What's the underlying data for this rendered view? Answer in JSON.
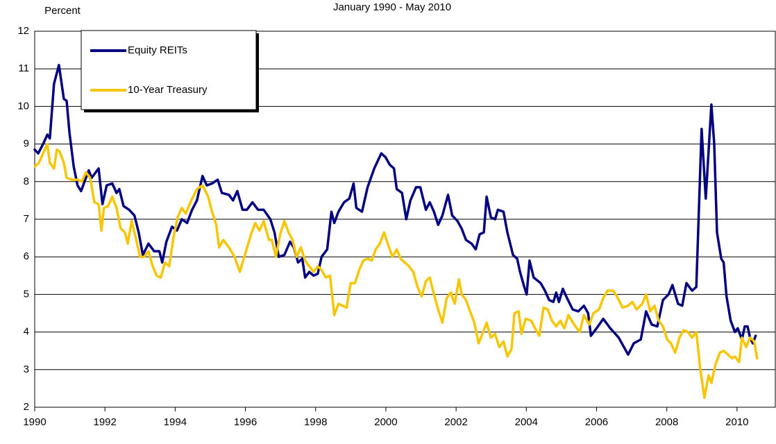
{
  "chart_data": {
    "type": "line",
    "title": "January 1990 - May 2010",
    "y_label": "Percent",
    "xlim": [
      1990,
      2011.09
    ],
    "xticks": [
      1990,
      1992,
      1994,
      1996,
      1998,
      2000,
      2002,
      2004,
      2006,
      2008,
      2010
    ],
    "ylim": [
      2,
      12
    ],
    "yticks": [
      2,
      3,
      4,
      5,
      6,
      7,
      8,
      9,
      10,
      11,
      12
    ],
    "grid": true,
    "legend": "upper left",
    "series": [
      {
        "name": "Equity REITs",
        "color": "#000080",
        "x": [
          1990.0,
          1990.1,
          1990.24,
          1990.36,
          1990.43,
          1990.55,
          1990.69,
          1990.83,
          1990.91,
          1990.99,
          1991.11,
          1991.22,
          1991.32,
          1991.42,
          1991.54,
          1991.62,
          1991.7,
          1991.82,
          1991.93,
          1992.05,
          1992.21,
          1992.33,
          1992.41,
          1992.53,
          1992.69,
          1992.84,
          1992.96,
          1993.08,
          1993.24,
          1993.4,
          1993.55,
          1993.63,
          1993.75,
          1993.91,
          1994.05,
          1994.19,
          1994.34,
          1994.48,
          1994.62,
          1994.78,
          1994.9,
          1995.05,
          1995.21,
          1995.33,
          1995.53,
          1995.65,
          1995.77,
          1995.92,
          1996.04,
          1996.2,
          1996.36,
          1996.52,
          1996.71,
          1996.83,
          1996.95,
          1997.11,
          1997.27,
          1997.38,
          1997.5,
          1997.62,
          1997.7,
          1997.82,
          1997.94,
          1998.06,
          1998.17,
          1998.33,
          1998.45,
          1998.53,
          1998.65,
          1998.81,
          1998.96,
          1999.08,
          1999.16,
          1999.32,
          1999.48,
          1999.67,
          1999.87,
          1999.99,
          2000.11,
          2000.23,
          2000.31,
          2000.46,
          2000.58,
          2000.7,
          2000.86,
          2000.98,
          2001.14,
          2001.25,
          2001.37,
          2001.49,
          2001.61,
          2001.77,
          2001.89,
          2002.04,
          2002.16,
          2002.28,
          2002.44,
          2002.56,
          2002.67,
          2002.79,
          2002.87,
          2002.99,
          2003.11,
          2003.19,
          2003.35,
          2003.46,
          2003.62,
          2003.74,
          2003.82,
          2003.94,
          2004.01,
          2004.09,
          2004.21,
          2004.41,
          2004.53,
          2004.65,
          2004.77,
          2004.85,
          2004.93,
          2005.04,
          2005.16,
          2005.32,
          2005.48,
          2005.64,
          2005.76,
          2005.84,
          2006.0,
          2006.19,
          2006.39,
          2006.63,
          2006.78,
          2006.9,
          2007.06,
          2007.26,
          2007.41,
          2007.57,
          2007.73,
          2007.89,
          2008.05,
          2008.16,
          2008.32,
          2008.44,
          2008.56,
          2008.72,
          2008.84,
          2008.99,
          2009.11,
          2009.27,
          2009.35,
          2009.43,
          2009.55,
          2009.62,
          2009.7,
          2009.82,
          2009.94,
          2010.02,
          2010.14,
          2010.22,
          2010.3,
          2010.37,
          2010.45,
          2010.53
        ],
        "values": [
          8.85,
          8.75,
          9.0,
          9.25,
          9.15,
          10.6,
          11.1,
          10.2,
          10.15,
          9.3,
          8.4,
          7.9,
          7.75,
          8.0,
          8.3,
          8.1,
          8.2,
          8.35,
          7.4,
          7.9,
          7.95,
          7.7,
          7.8,
          7.35,
          7.25,
          7.1,
          6.65,
          6.05,
          6.35,
          6.15,
          6.15,
          5.85,
          6.4,
          6.8,
          6.7,
          7.0,
          6.9,
          7.25,
          7.5,
          8.15,
          7.9,
          7.95,
          8.05,
          7.7,
          7.65,
          7.5,
          7.75,
          7.25,
          7.25,
          7.45,
          7.25,
          7.25,
          7.0,
          6.65,
          6.0,
          6.05,
          6.4,
          6.25,
          5.85,
          5.95,
          5.45,
          5.6,
          5.5,
          5.55,
          6.0,
          6.2,
          7.2,
          6.9,
          7.2,
          7.45,
          7.55,
          7.95,
          7.3,
          7.2,
          7.85,
          8.35,
          8.75,
          8.65,
          8.45,
          8.35,
          7.8,
          7.7,
          7.0,
          7.5,
          7.85,
          7.85,
          7.25,
          7.45,
          7.2,
          6.85,
          7.1,
          7.65,
          7.1,
          6.95,
          6.75,
          6.45,
          6.35,
          6.2,
          6.6,
          6.65,
          7.6,
          7.05,
          7.0,
          7.25,
          7.2,
          6.65,
          6.05,
          5.95,
          5.6,
          5.2,
          5.0,
          5.9,
          5.45,
          5.3,
          5.1,
          4.85,
          4.8,
          5.05,
          4.8,
          5.15,
          4.9,
          4.6,
          4.55,
          4.7,
          4.5,
          3.9,
          4.1,
          4.35,
          4.1,
          3.85,
          3.6,
          3.4,
          3.7,
          3.8,
          4.55,
          4.2,
          4.15,
          4.85,
          5.0,
          5.25,
          4.75,
          4.7,
          5.3,
          5.1,
          5.2,
          9.4,
          7.55,
          10.05,
          9.0,
          6.65,
          5.95,
          5.85,
          4.95,
          4.3,
          4.0,
          4.1,
          3.8,
          4.15,
          4.15,
          3.85,
          3.7,
          3.9
        ]
      },
      {
        "name": "10-Year Treasury",
        "color": "#f7c600",
        "x": [
          1990.0,
          1990.12,
          1990.24,
          1990.36,
          1990.43,
          1990.55,
          1990.63,
          1990.71,
          1990.83,
          1990.91,
          1991.07,
          1991.22,
          1991.34,
          1991.46,
          1991.58,
          1991.7,
          1991.82,
          1991.9,
          1991.97,
          1992.09,
          1992.21,
          1992.33,
          1992.45,
          1992.57,
          1992.65,
          1992.76,
          1992.88,
          1993.0,
          1993.12,
          1993.24,
          1993.36,
          1993.47,
          1993.59,
          1993.71,
          1993.83,
          1993.95,
          1994.07,
          1994.19,
          1994.3,
          1994.46,
          1994.62,
          1994.78,
          1994.94,
          1995.05,
          1995.17,
          1995.25,
          1995.37,
          1995.53,
          1995.69,
          1995.84,
          1996.0,
          1996.16,
          1996.28,
          1996.4,
          1996.52,
          1996.67,
          1996.75,
          1996.87,
          1996.99,
          1997.11,
          1997.23,
          1997.34,
          1997.46,
          1997.58,
          1997.7,
          1997.82,
          1997.94,
          1998.06,
          1998.17,
          1998.29,
          1998.41,
          1998.53,
          1998.65,
          1998.77,
          1998.88,
          1999.0,
          1999.12,
          1999.24,
          1999.36,
          1999.48,
          1999.6,
          1999.71,
          1999.83,
          1999.95,
          2000.07,
          2000.19,
          2000.31,
          2000.42,
          2000.54,
          2000.66,
          2000.78,
          2000.9,
          2001.02,
          2001.14,
          2001.25,
          2001.37,
          2001.49,
          2001.61,
          2001.73,
          2001.85,
          2001.96,
          2002.08,
          2002.16,
          2002.28,
          2002.4,
          2002.52,
          2002.64,
          2002.75,
          2002.87,
          2002.99,
          2003.11,
          2003.23,
          2003.35,
          2003.46,
          2003.58,
          2003.66,
          2003.78,
          2003.86,
          2003.98,
          2004.14,
          2004.25,
          2004.37,
          2004.49,
          2004.61,
          2004.73,
          2004.85,
          2004.97,
          2005.08,
          2005.2,
          2005.36,
          2005.52,
          2005.64,
          2005.79,
          2005.91,
          2006.07,
          2006.19,
          2006.31,
          2006.47,
          2006.58,
          2006.74,
          2006.9,
          2007.02,
          2007.14,
          2007.3,
          2007.41,
          2007.53,
          2007.65,
          2007.77,
          2007.89,
          2008.01,
          2008.12,
          2008.24,
          2008.36,
          2008.48,
          2008.6,
          2008.72,
          2008.84,
          2008.95,
          2009.07,
          2009.19,
          2009.27,
          2009.39,
          2009.51,
          2009.62,
          2009.74,
          2009.86,
          2009.94,
          2010.06,
          2010.14,
          2010.26,
          2010.37,
          2010.49,
          2010.57
        ],
        "values": [
          8.4,
          8.5,
          8.75,
          9.0,
          8.5,
          8.35,
          8.85,
          8.8,
          8.5,
          8.1,
          8.05,
          8.05,
          8.0,
          8.25,
          8.1,
          7.45,
          7.4,
          6.7,
          7.3,
          7.35,
          7.6,
          7.3,
          6.75,
          6.65,
          6.35,
          6.95,
          6.5,
          6.0,
          6.0,
          6.15,
          5.75,
          5.5,
          5.45,
          5.85,
          5.75,
          6.5,
          7.05,
          7.3,
          7.15,
          7.5,
          7.8,
          7.9,
          7.6,
          7.2,
          6.85,
          6.25,
          6.45,
          6.25,
          6.0,
          5.6,
          6.1,
          6.6,
          6.9,
          6.7,
          6.95,
          6.45,
          6.45,
          6.0,
          6.6,
          6.95,
          6.65,
          6.45,
          6.0,
          6.25,
          5.9,
          5.75,
          5.6,
          5.75,
          5.65,
          5.45,
          5.5,
          4.45,
          4.75,
          4.7,
          4.65,
          5.3,
          5.3,
          5.65,
          5.9,
          5.95,
          5.9,
          6.2,
          6.35,
          6.65,
          6.3,
          6.0,
          6.2,
          5.95,
          5.85,
          5.75,
          5.6,
          5.2,
          4.95,
          5.35,
          5.45,
          5.0,
          4.6,
          4.25,
          4.9,
          5.05,
          4.75,
          5.4,
          5.0,
          4.85,
          4.55,
          4.25,
          3.7,
          3.95,
          4.25,
          3.85,
          3.95,
          3.6,
          3.75,
          3.35,
          3.55,
          4.5,
          4.55,
          3.95,
          4.35,
          4.3,
          4.1,
          3.9,
          4.65,
          4.6,
          4.3,
          4.15,
          4.3,
          4.1,
          4.45,
          4.2,
          4.0,
          4.45,
          4.2,
          4.5,
          4.6,
          4.9,
          5.1,
          5.1,
          4.95,
          4.65,
          4.7,
          4.8,
          4.6,
          4.75,
          5.0,
          4.55,
          4.7,
          4.3,
          4.15,
          3.8,
          3.7,
          3.45,
          3.85,
          4.05,
          4.0,
          3.85,
          4.0,
          3.05,
          2.25,
          2.85,
          2.65,
          3.15,
          3.45,
          3.5,
          3.4,
          3.3,
          3.35,
          3.2,
          3.85,
          3.6,
          3.85,
          3.75,
          3.3
        ]
      }
    ]
  }
}
